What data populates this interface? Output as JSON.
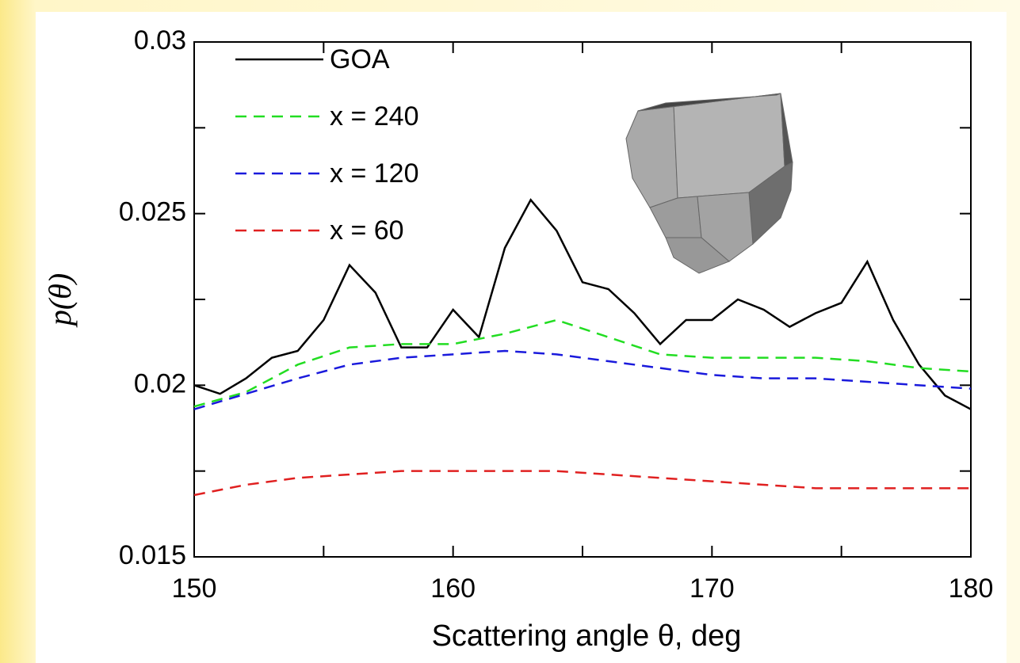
{
  "chart_data": {
    "type": "line",
    "x_label": "Scattering angle θ, deg",
    "y_label": "p(θ)",
    "xlim": [
      150,
      180
    ],
    "xticks": [
      150,
      160,
      170,
      180
    ],
    "xminor": [
      155,
      165,
      175
    ],
    "ylim": [
      0.015,
      0.03
    ],
    "yticks": [
      0.015,
      0.02,
      0.025,
      0.03
    ],
    "yminor": [
      0.0175,
      0.0225,
      0.0275
    ],
    "series": [
      {
        "name": "GOA",
        "color": "#000000",
        "dash": "none",
        "x": [
          150,
          151,
          152,
          153,
          154,
          155,
          156,
          157,
          158,
          159,
          160,
          161,
          162,
          163,
          164,
          165,
          166,
          167,
          168,
          169,
          170,
          171,
          172,
          173,
          174,
          175,
          176,
          177,
          178,
          179,
          180
        ],
        "values": [
          0.02,
          0.01975,
          0.0202,
          0.0208,
          0.021,
          0.0219,
          0.0235,
          0.0227,
          0.0211,
          0.0211,
          0.0222,
          0.0214,
          0.024,
          0.0254,
          0.0245,
          0.023,
          0.0228,
          0.0221,
          0.0212,
          0.0219,
          0.0219,
          0.0225,
          0.0222,
          0.0217,
          0.0221,
          0.0224,
          0.0236,
          0.0219,
          0.0206,
          0.0197,
          0.0193
        ]
      },
      {
        "name": "x = 240",
        "color": "#22dd22",
        "dash": "14 9",
        "x": [
          150,
          152,
          154,
          156,
          158,
          160,
          162,
          164,
          166,
          168,
          170,
          172,
          174,
          176,
          178,
          180
        ],
        "values": [
          0.01938,
          0.0198,
          0.0206,
          0.0211,
          0.0212,
          0.0212,
          0.0215,
          0.0219,
          0.0214,
          0.0209,
          0.0208,
          0.0208,
          0.0208,
          0.0207,
          0.0205,
          0.0204
        ]
      },
      {
        "name": "x = 120",
        "color": "#1a1adc",
        "dash": "14 9",
        "x": [
          150,
          152,
          154,
          156,
          158,
          160,
          162,
          164,
          166,
          168,
          170,
          172,
          174,
          176,
          178,
          180
        ],
        "values": [
          0.0193,
          0.01975,
          0.0202,
          0.0206,
          0.0208,
          0.0209,
          0.021,
          0.0209,
          0.0207,
          0.0205,
          0.0203,
          0.0202,
          0.0202,
          0.0201,
          0.02,
          0.0199
        ]
      },
      {
        "name": "x = 60",
        "color": "#e02020",
        "dash": "14 9",
        "x": [
          150,
          152,
          154,
          156,
          158,
          160,
          162,
          164,
          166,
          168,
          170,
          172,
          174,
          176,
          178,
          180
        ],
        "values": [
          0.0168,
          0.0171,
          0.0173,
          0.0174,
          0.0175,
          0.0175,
          0.0175,
          0.0175,
          0.0174,
          0.0173,
          0.0172,
          0.0171,
          0.017,
          0.017,
          0.017,
          0.017
        ]
      }
    ]
  }
}
